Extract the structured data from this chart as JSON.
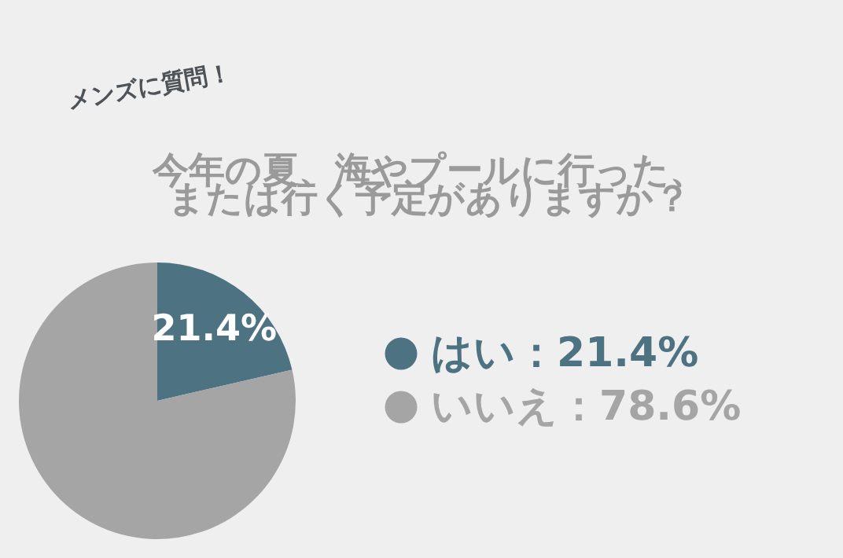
{
  "chart_data": {
    "type": "pie",
    "title": "今年の夏、海やプールに行った、または行く予定がありますか？",
    "annotations": [
      "メンズに質問！"
    ],
    "categories": [
      "はい：21.4%",
      "いいえ：78.6%"
    ],
    "values": [
      21.4,
      78.6
    ],
    "colors": [
      "#4d7282",
      "#a5a5a5"
    ],
    "value_labels": [
      "21.4%",
      null
    ],
    "legend": "right"
  }
}
